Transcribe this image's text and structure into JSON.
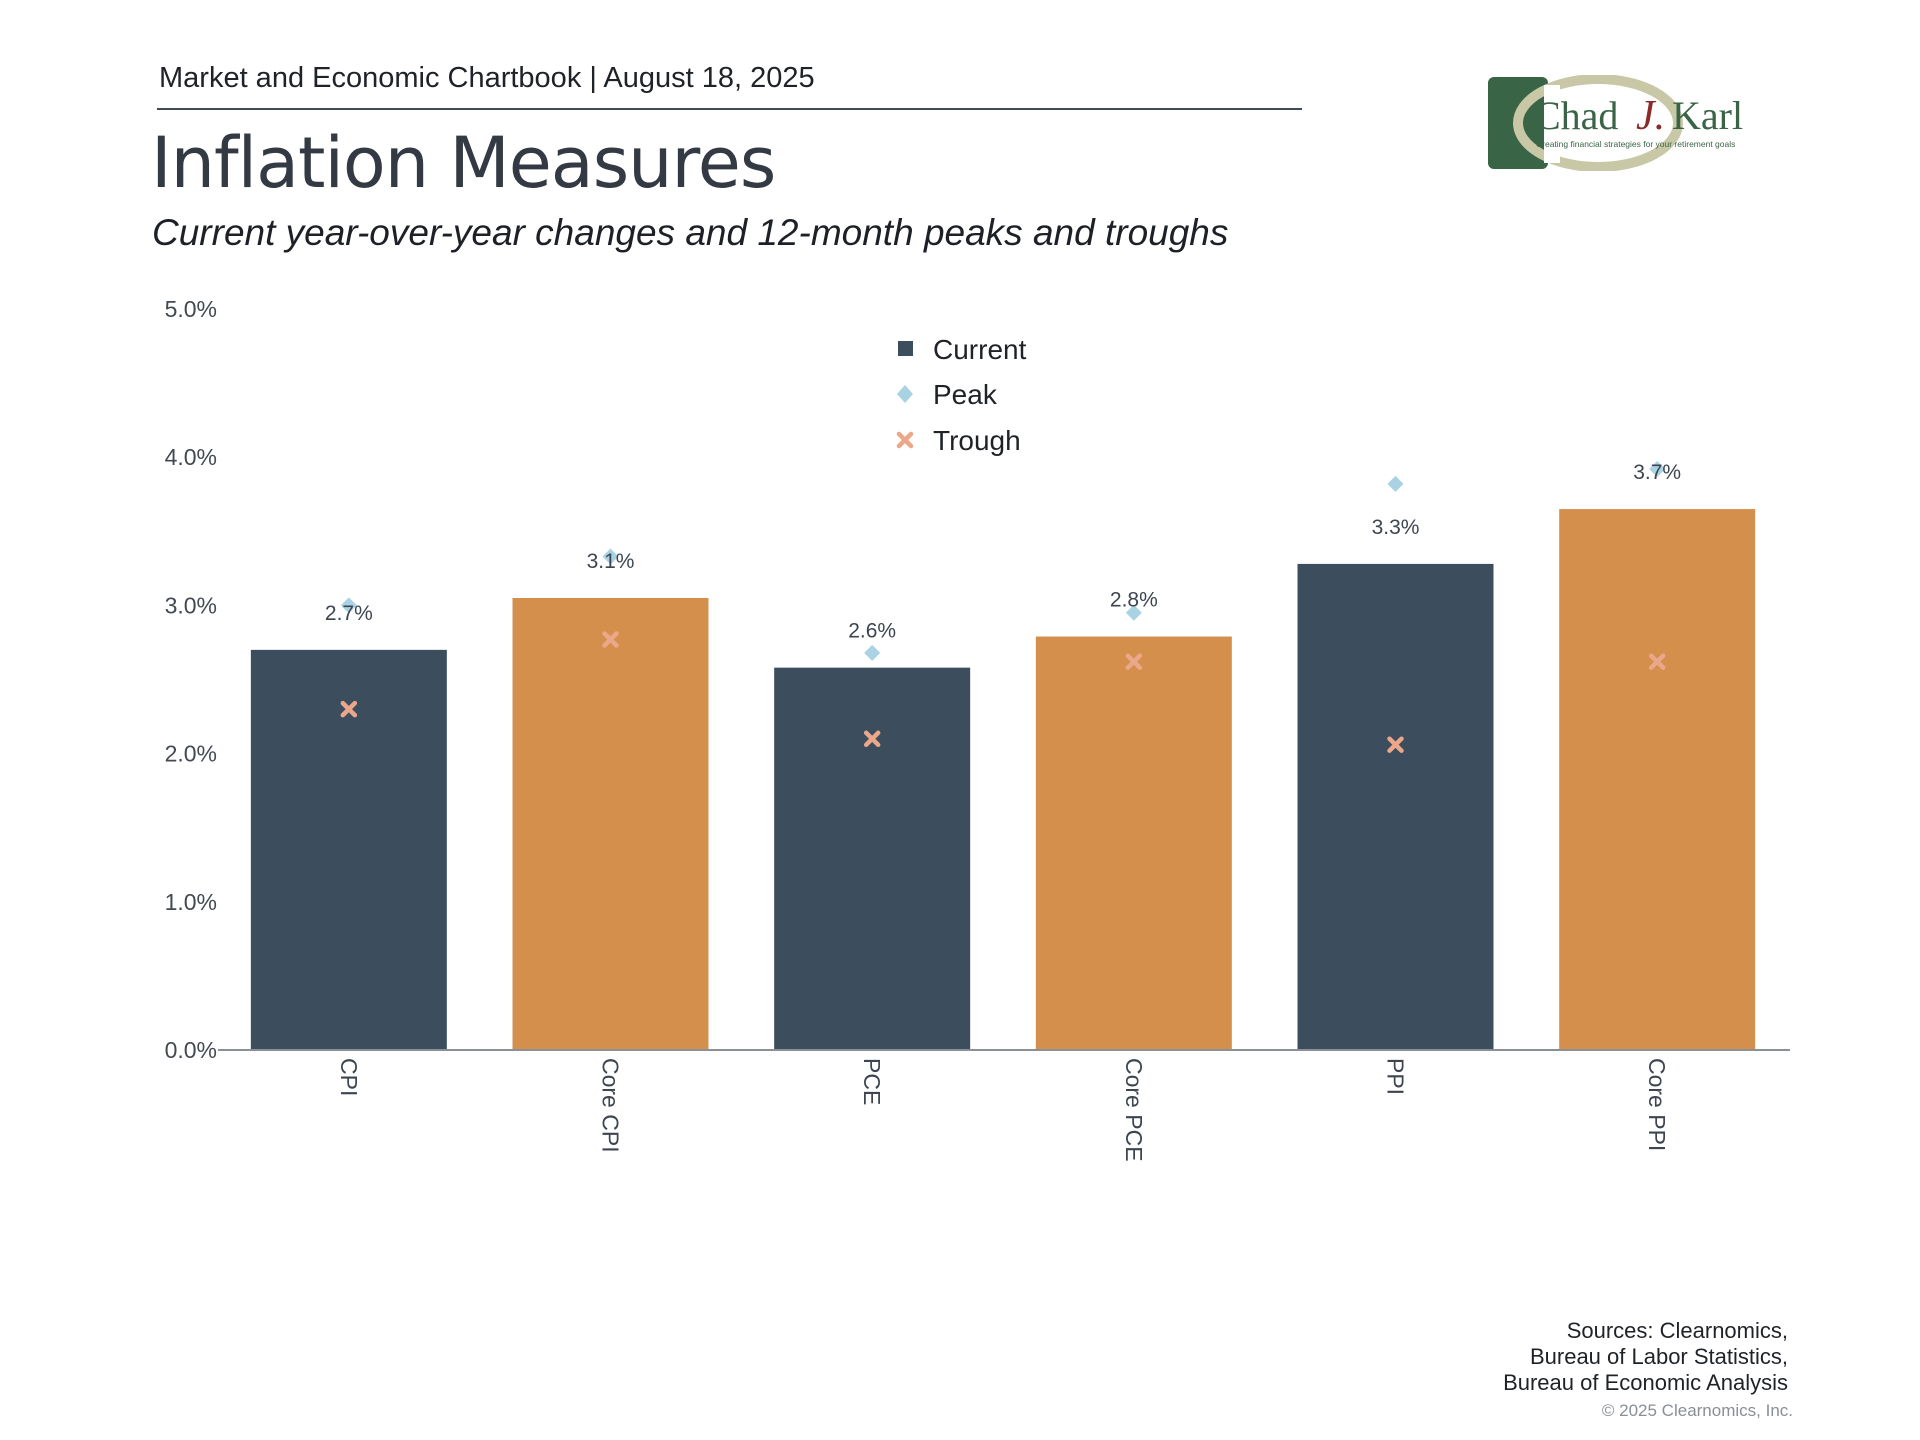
{
  "header": {
    "chartbook_line": "Market and Economic Chartbook | August 18, 2025",
    "title": "Inflation Measures",
    "subtitle": "Current year-over-year changes and 12-month peaks and troughs"
  },
  "logo": {
    "text_chad": "Chad",
    "text_j": "J.",
    "text_karl": "Karl",
    "tagline": "Creating financial strategies for your retirement goals",
    "colors": {
      "green": "#3a6446",
      "swoosh": "#c9c8a6",
      "j_red": "#8b2a2a"
    }
  },
  "footer": {
    "sources_lines": [
      "Sources: Clearnomics,",
      "Bureau of Labor Statistics,",
      "Bureau of Economic Analysis"
    ],
    "copyright": "© 2025 Clearnomics, Inc."
  },
  "chart_data": {
    "type": "bar",
    "categories": [
      "CPI",
      "Core CPI",
      "PCE",
      "Core PCE",
      "PPI",
      "Core PPI"
    ],
    "series": [
      {
        "name": "Current",
        "values": [
          2.7,
          3.05,
          2.58,
          2.79,
          3.28,
          3.65
        ],
        "marker": "square"
      },
      {
        "name": "Peak",
        "values": [
          3.0,
          3.33,
          2.68,
          2.95,
          3.82,
          3.92
        ],
        "marker": "diamond"
      },
      {
        "name": "Trough",
        "values": [
          2.3,
          2.77,
          2.1,
          2.62,
          2.06,
          2.62
        ],
        "marker": "x"
      }
    ],
    "data_labels": [
      "2.7%",
      "3.1%",
      "2.6%",
      "2.8%",
      "3.3%",
      "3.7%"
    ],
    "bar_colors": [
      "#3c4e5e",
      "#d58f4c",
      "#3c4e5e",
      "#d58f4c",
      "#3c4e5e",
      "#d58f4c"
    ],
    "peak_color": "#a9d2e3",
    "trough_color": "#eba78a",
    "y_ticks": [
      "0.0%",
      "1.0%",
      "2.0%",
      "3.0%",
      "4.0%",
      "5.0%"
    ],
    "ylim": [
      0,
      5
    ],
    "legend_position": "top-center",
    "grid": false
  }
}
